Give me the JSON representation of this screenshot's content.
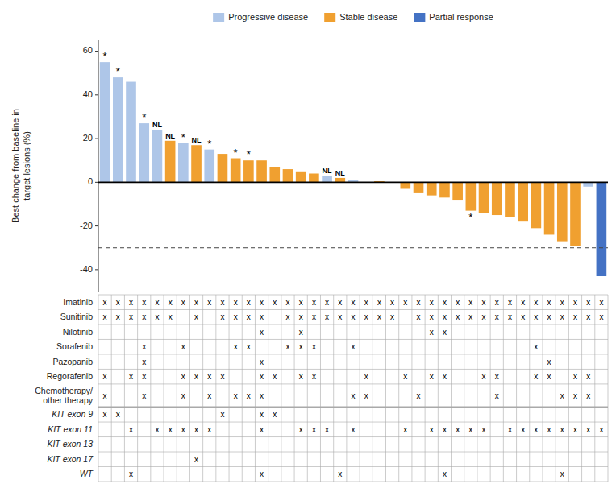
{
  "chart_data": {
    "type": "bar",
    "stacked": true,
    "grid": false,
    "legend": "top",
    "tick_labels": "y",
    "y_label": "Best change from baseline in\ntarget lesions (%)",
    "categories": [
      null,
      null,
      null,
      null,
      null,
      null,
      null,
      null,
      null,
      null,
      null,
      null,
      null,
      null,
      null,
      null,
      null,
      null,
      null,
      null,
      null,
      null,
      null,
      null,
      null,
      null,
      null,
      null,
      null,
      null,
      null,
      null,
      null,
      null,
      null,
      null,
      null,
      null,
      null
    ],
    "series": [
      {
        "name": "Progressive disease",
        "color": "#aec6e8",
        "values": [
          55,
          48,
          46,
          27,
          24,
          null,
          18,
          null,
          15,
          null,
          null,
          null,
          null,
          null,
          null,
          null,
          null,
          3,
          null,
          1,
          0,
          null,
          0,
          null,
          null,
          null,
          null,
          null,
          null,
          null,
          null,
          null,
          null,
          null,
          null,
          null,
          null,
          -2,
          null
        ]
      },
      {
        "name": "Stable disease",
        "color": "#f0a030",
        "values": [
          null,
          null,
          null,
          null,
          null,
          19,
          null,
          17,
          null,
          13,
          11,
          10,
          10,
          7,
          6,
          5,
          4,
          null,
          2,
          null,
          null,
          0.5,
          null,
          -3,
          -5,
          -6,
          -7,
          -8,
          -13,
          -14,
          -15,
          -16,
          -18,
          -21,
          -24,
          -27,
          -29,
          null,
          null
        ]
      },
      {
        "name": "Partial response",
        "color": "#4472c4",
        "values": [
          null,
          null,
          null,
          null,
          null,
          null,
          null,
          null,
          null,
          null,
          null,
          null,
          null,
          null,
          null,
          null,
          null,
          null,
          null,
          null,
          null,
          null,
          null,
          null,
          null,
          null,
          null,
          null,
          null,
          null,
          null,
          null,
          null,
          null,
          null,
          null,
          null,
          null,
          -43
        ]
      }
    ],
    "ylim": [
      -50,
      65
    ],
    "yticks": [
      -40,
      -20,
      0,
      20,
      40,
      60
    ],
    "reference_lines": [
      {
        "value": -30,
        "line_style": "dashed"
      }
    ],
    "annotations": [
      {
        "text": "*",
        "index": 0
      },
      {
        "text": "*",
        "index": 1
      },
      {
        "text": "*",
        "index": 3
      },
      {
        "text": "NL",
        "index": 4
      },
      {
        "text": "NL",
        "index": 5
      },
      {
        "text": "*",
        "index": 6
      },
      {
        "text": "NL",
        "index": 7
      },
      {
        "text": "*",
        "index": 8
      },
      {
        "text": "*",
        "index": 10
      },
      {
        "text": "*",
        "index": 11
      },
      {
        "text": "NL",
        "index": 17
      },
      {
        "text": "NL",
        "index": 18
      },
      {
        "text": "*",
        "index": 28
      }
    ],
    "table": {
      "mark": "x",
      "groups": [
        {
          "rows": [
            {
              "label": "Imatinib",
              "values": [
                1,
                1,
                1,
                1,
                1,
                1,
                1,
                1,
                1,
                1,
                1,
                1,
                1,
                1,
                1,
                1,
                1,
                1,
                1,
                1,
                1,
                1,
                1,
                1,
                1,
                1,
                1,
                1,
                1,
                1,
                1,
                1,
                1,
                1,
                1,
                1,
                1,
                1,
                1
              ]
            },
            {
              "label": "Sunitinib",
              "values": [
                1,
                1,
                1,
                1,
                1,
                1,
                0,
                1,
                0,
                1,
                1,
                1,
                1,
                0,
                1,
                1,
                1,
                1,
                1,
                1,
                1,
                1,
                1,
                0,
                1,
                1,
                1,
                1,
                1,
                1,
                1,
                1,
                1,
                1,
                1,
                1,
                1,
                1,
                1
              ]
            },
            {
              "label": "Nilotinib",
              "values": [
                0,
                0,
                0,
                0,
                0,
                0,
                0,
                0,
                0,
                0,
                0,
                0,
                1,
                0,
                0,
                1,
                0,
                0,
                0,
                0,
                0,
                0,
                0,
                0,
                0,
                1,
                1,
                0,
                0,
                0,
                0,
                0,
                0,
                0,
                0,
                0,
                0,
                0,
                0
              ]
            },
            {
              "label": "Sorafenib",
              "values": [
                0,
                0,
                0,
                1,
                0,
                0,
                1,
                0,
                0,
                0,
                1,
                1,
                0,
                0,
                1,
                1,
                1,
                0,
                0,
                1,
                0,
                0,
                0,
                0,
                0,
                0,
                0,
                0,
                0,
                0,
                0,
                0,
                0,
                1,
                0,
                0,
                0,
                0,
                0
              ]
            },
            {
              "label": "Pazopanib",
              "values": [
                0,
                0,
                0,
                1,
                0,
                0,
                0,
                0,
                0,
                0,
                0,
                0,
                1,
                0,
                0,
                0,
                0,
                0,
                0,
                0,
                0,
                0,
                0,
                0,
                0,
                0,
                0,
                0,
                0,
                0,
                0,
                0,
                0,
                0,
                1,
                0,
                0,
                0,
                0
              ]
            },
            {
              "label": "Regorafenib",
              "values": [
                1,
                0,
                1,
                1,
                0,
                0,
                1,
                1,
                1,
                1,
                0,
                0,
                1,
                1,
                0,
                1,
                1,
                0,
                0,
                0,
                1,
                0,
                0,
                1,
                0,
                1,
                1,
                0,
                0,
                1,
                1,
                0,
                0,
                1,
                1,
                0,
                1,
                1,
                0
              ]
            },
            {
              "label": "Chemotherapy/\nother therapy",
              "values": [
                1,
                0,
                0,
                1,
                0,
                0,
                1,
                0,
                1,
                0,
                1,
                1,
                1,
                0,
                0,
                0,
                0,
                0,
                0,
                1,
                1,
                0,
                0,
                0,
                1,
                0,
                0,
                0,
                0,
                0,
                1,
                0,
                0,
                0,
                0,
                1,
                1,
                1,
                0
              ]
            }
          ]
        },
        {
          "rows": [
            {
              "label": "KIT exon 9",
              "values": [
                1,
                1,
                0,
                0,
                0,
                0,
                0,
                0,
                0,
                1,
                0,
                0,
                1,
                1,
                0,
                0,
                0,
                0,
                0,
                0,
                0,
                0,
                0,
                0,
                0,
                0,
                0,
                0,
                0,
                0,
                0,
                0,
                0,
                0,
                0,
                0,
                0,
                0,
                0
              ]
            },
            {
              "label": "KIT exon 11",
              "values": [
                0,
                0,
                1,
                0,
                1,
                1,
                1,
                1,
                1,
                0,
                0,
                0,
                1,
                0,
                0,
                1,
                1,
                1,
                0,
                1,
                0,
                0,
                0,
                1,
                0,
                1,
                1,
                1,
                1,
                1,
                0,
                1,
                1,
                1,
                1,
                1,
                1,
                1,
                1
              ]
            },
            {
              "label": "KIT exon 13",
              "values": [
                0,
                0,
                0,
                0,
                0,
                0,
                0,
                0,
                0,
                0,
                0,
                0,
                0,
                0,
                0,
                0,
                0,
                0,
                0,
                0,
                0,
                0,
                0,
                0,
                0,
                0,
                0,
                0,
                0,
                0,
                0,
                0,
                0,
                0,
                0,
                0,
                0,
                0,
                0
              ]
            },
            {
              "label": "KIT exon 17",
              "values": [
                0,
                0,
                0,
                0,
                0,
                0,
                0,
                1,
                0,
                0,
                0,
                0,
                0,
                0,
                0,
                0,
                0,
                0,
                0,
                0,
                0,
                0,
                0,
                0,
                0,
                0,
                0,
                0,
                0,
                0,
                0,
                0,
                0,
                0,
                0,
                0,
                0,
                0,
                0
              ]
            },
            {
              "label": "WT",
              "values": [
                0,
                0,
                1,
                0,
                0,
                0,
                0,
                0,
                0,
                0,
                0,
                0,
                1,
                0,
                0,
                0,
                0,
                0,
                1,
                0,
                0,
                0,
                0,
                0,
                0,
                0,
                1,
                0,
                0,
                0,
                0,
                0,
                0,
                0,
                0,
                1,
                0,
                0,
                0
              ]
            }
          ]
        }
      ]
    }
  }
}
